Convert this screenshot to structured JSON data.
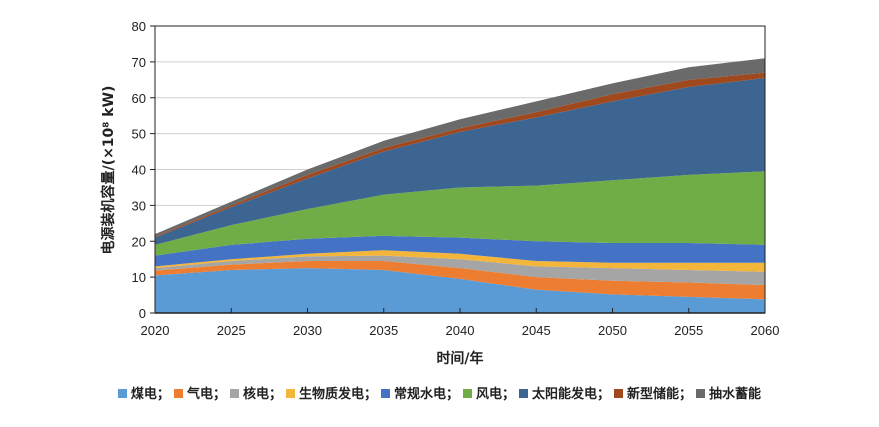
{
  "chart_data": {
    "type": "area",
    "stacked": true,
    "title": "",
    "xlabel": "时间/年",
    "ylabel": "电源装机容量/(×10⁸ kW)",
    "x": [
      2020,
      2025,
      2030,
      2035,
      2040,
      2045,
      2050,
      2055,
      2060
    ],
    "xlim": [
      2020,
      2060
    ],
    "ylim": [
      0,
      80
    ],
    "yticks": [
      0,
      10,
      20,
      30,
      40,
      50,
      60,
      70,
      80
    ],
    "grid": true,
    "legend_position": "bottom",
    "series": [
      {
        "name": "煤电",
        "legend_label": "煤电；",
        "color": "#5b9bd5",
        "values": [
          10.5,
          12.0,
          12.5,
          12.0,
          9.5,
          6.5,
          5.2,
          4.5,
          3.8
        ]
      },
      {
        "name": "气电",
        "legend_label": "气电；",
        "color": "#ed7d31",
        "values": [
          1.3,
          1.5,
          2.0,
          2.5,
          3.0,
          3.5,
          3.8,
          4.0,
          4.0
        ]
      },
      {
        "name": "核电",
        "legend_label": "核电；",
        "color": "#a5a5a5",
        "values": [
          0.7,
          1.0,
          1.3,
          1.5,
          2.5,
          3.0,
          3.5,
          3.5,
          3.7
        ]
      },
      {
        "name": "生物质发电",
        "legend_label": "生物质发电；",
        "color": "#f4b63a",
        "values": [
          0.5,
          0.5,
          0.7,
          1.5,
          1.5,
          1.5,
          1.5,
          2.0,
          2.5
        ]
      },
      {
        "name": "常规水电",
        "legend_label": "常规水电；",
        "color": "#4472c4",
        "values": [
          3.0,
          4.0,
          4.2,
          4.0,
          4.5,
          5.5,
          5.5,
          5.5,
          5.0
        ]
      },
      {
        "name": "风电",
        "legend_label": "风电；",
        "color": "#70ad47",
        "values": [
          3.0,
          5.5,
          8.3,
          11.5,
          14.0,
          15.5,
          17.5,
          19.0,
          20.5
        ]
      },
      {
        "name": "太阳能发电",
        "legend_label": "太阳能发电；",
        "color": "#3c6591",
        "values": [
          2.0,
          5.0,
          8.5,
          12.0,
          15.5,
          19.0,
          22.0,
          24.5,
          26.0
        ]
      },
      {
        "name": "新型储能",
        "legend_label": "新型储能；",
        "color": "#a0481e",
        "values": [
          0.3,
          0.5,
          1.0,
          1.0,
          1.0,
          1.5,
          2.0,
          2.0,
          1.5
        ]
      },
      {
        "name": "抽水蓄能",
        "legend_label": "抽水蓄能",
        "color": "#6a6a6a",
        "values": [
          0.7,
          1.0,
          1.5,
          2.0,
          2.5,
          3.0,
          3.0,
          3.5,
          4.0
        ]
      }
    ]
  }
}
